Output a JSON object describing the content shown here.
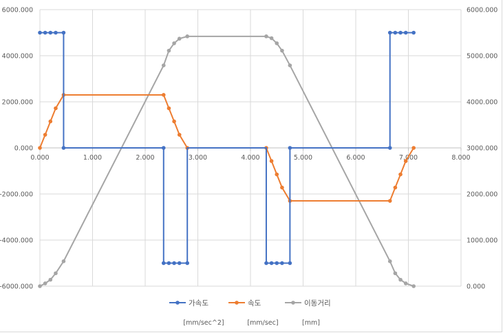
{
  "chart_data": {
    "type": "line",
    "title": "",
    "x_ticks": [
      "0.000",
      "1.000",
      "2.000",
      "3.000",
      "4.000",
      "5.000",
      "6.000",
      "7.000",
      "8.000"
    ],
    "xlim": [
      0,
      8
    ],
    "y_left_ticks": [
      "6000.000",
      "4000.000",
      "2000.000",
      "0.000",
      "-2000.000",
      "-4000.000",
      "-6000.000"
    ],
    "ylim_left": [
      -6000,
      6000
    ],
    "y_right_ticks": [
      "6000.000",
      "5000.000",
      "4000.000",
      "3000.000",
      "2000.000",
      "1000.000",
      "0.000"
    ],
    "ylim_right": [
      0,
      6000
    ],
    "grid": true,
    "legend_position": "bottom",
    "series": [
      {
        "name": "가속도",
        "color": "#4472c4",
        "axis": "left",
        "points": [
          [
            0,
            5000
          ],
          [
            0.1,
            5000
          ],
          [
            0.2,
            5000
          ],
          [
            0.3,
            5000
          ],
          [
            0.45,
            5000
          ],
          [
            0.45,
            0
          ],
          [
            2.35,
            0
          ],
          [
            2.35,
            -5000
          ],
          [
            2.45,
            -5000
          ],
          [
            2.55,
            -5000
          ],
          [
            2.65,
            -5000
          ],
          [
            2.8,
            -5000
          ],
          [
            2.8,
            0
          ],
          [
            4.3,
            0
          ],
          [
            4.3,
            -5000
          ],
          [
            4.4,
            -5000
          ],
          [
            4.5,
            -5000
          ],
          [
            4.6,
            -5000
          ],
          [
            4.75,
            -5000
          ],
          [
            4.75,
            0
          ],
          [
            6.65,
            0
          ],
          [
            6.65,
            5000
          ],
          [
            6.75,
            5000
          ],
          [
            6.85,
            5000
          ],
          [
            6.95,
            5000
          ],
          [
            7.1,
            5000
          ]
        ],
        "markers": [
          [
            0,
            5000
          ],
          [
            0.1,
            5000
          ],
          [
            0.2,
            5000
          ],
          [
            0.3,
            5000
          ],
          [
            0.45,
            5000
          ],
          [
            0.45,
            0
          ],
          [
            2.35,
            0
          ],
          [
            2.35,
            -5000
          ],
          [
            2.45,
            -5000
          ],
          [
            2.55,
            -5000
          ],
          [
            2.65,
            -5000
          ],
          [
            2.8,
            -5000
          ],
          [
            4.3,
            -5000
          ],
          [
            4.4,
            -5000
          ],
          [
            4.5,
            -5000
          ],
          [
            4.6,
            -5000
          ],
          [
            4.75,
            -5000
          ],
          [
            4.75,
            0
          ],
          [
            6.65,
            0
          ],
          [
            6.65,
            5000
          ],
          [
            6.75,
            5000
          ],
          [
            6.85,
            5000
          ],
          [
            6.95,
            5000
          ],
          [
            7.1,
            5000
          ]
        ]
      },
      {
        "name": "속도",
        "color": "#ed7d31",
        "axis": "left",
        "points": [
          [
            0,
            0
          ],
          [
            0.1,
            570
          ],
          [
            0.2,
            1150
          ],
          [
            0.3,
            1720
          ],
          [
            0.45,
            2300
          ],
          [
            2.35,
            2300
          ],
          [
            2.45,
            1720
          ],
          [
            2.55,
            1150
          ],
          [
            2.65,
            570
          ],
          [
            2.8,
            0
          ],
          [
            4.3,
            0
          ],
          [
            4.4,
            -570
          ],
          [
            4.5,
            -1150
          ],
          [
            4.6,
            -1720
          ],
          [
            4.75,
            -2300
          ],
          [
            6.65,
            -2300
          ],
          [
            6.75,
            -1720
          ],
          [
            6.85,
            -1150
          ],
          [
            6.95,
            -570
          ],
          [
            7.1,
            0
          ]
        ],
        "markers": [
          [
            0,
            0
          ],
          [
            0.1,
            570
          ],
          [
            0.2,
            1150
          ],
          [
            0.3,
            1720
          ],
          [
            0.45,
            2300
          ],
          [
            2.35,
            2300
          ],
          [
            2.45,
            1720
          ],
          [
            2.55,
            1150
          ],
          [
            2.65,
            570
          ],
          [
            2.8,
            0
          ],
          [
            4.3,
            0
          ],
          [
            4.4,
            -570
          ],
          [
            4.5,
            -1150
          ],
          [
            4.6,
            -1720
          ],
          [
            4.75,
            -2300
          ],
          [
            6.65,
            -2300
          ],
          [
            6.75,
            -1720
          ],
          [
            6.85,
            -1150
          ],
          [
            6.95,
            -570
          ],
          [
            7.1,
            0
          ]
        ]
      },
      {
        "name": "이동거리",
        "color": "#a5a5a5",
        "axis": "right",
        "points": [
          [
            0,
            0
          ],
          [
            0.1,
            60
          ],
          [
            0.2,
            140
          ],
          [
            0.3,
            280
          ],
          [
            0.45,
            540
          ],
          [
            2.35,
            4790
          ],
          [
            2.45,
            5110
          ],
          [
            2.55,
            5270
          ],
          [
            2.65,
            5370
          ],
          [
            2.8,
            5420
          ],
          [
            4.3,
            5420
          ],
          [
            4.4,
            5380
          ],
          [
            4.5,
            5270
          ],
          [
            4.6,
            5110
          ],
          [
            4.75,
            4790
          ],
          [
            6.65,
            540
          ],
          [
            6.75,
            280
          ],
          [
            6.85,
            140
          ],
          [
            6.95,
            60
          ],
          [
            7.1,
            0
          ]
        ],
        "markers": [
          [
            0,
            0
          ],
          [
            0.1,
            60
          ],
          [
            0.2,
            140
          ],
          [
            0.3,
            280
          ],
          [
            0.45,
            540
          ],
          [
            2.35,
            4790
          ],
          [
            2.45,
            5110
          ],
          [
            2.55,
            5270
          ],
          [
            2.65,
            5370
          ],
          [
            2.8,
            5420
          ],
          [
            4.3,
            5420
          ],
          [
            4.4,
            5380
          ],
          [
            4.5,
            5270
          ],
          [
            4.6,
            5110
          ],
          [
            4.75,
            4790
          ],
          [
            6.65,
            540
          ],
          [
            6.75,
            280
          ],
          [
            6.85,
            140
          ],
          [
            6.95,
            60
          ],
          [
            7.1,
            0
          ]
        ]
      }
    ],
    "units": [
      "[mm/sec^2]",
      "[mm/sec]",
      "[mm]"
    ]
  }
}
